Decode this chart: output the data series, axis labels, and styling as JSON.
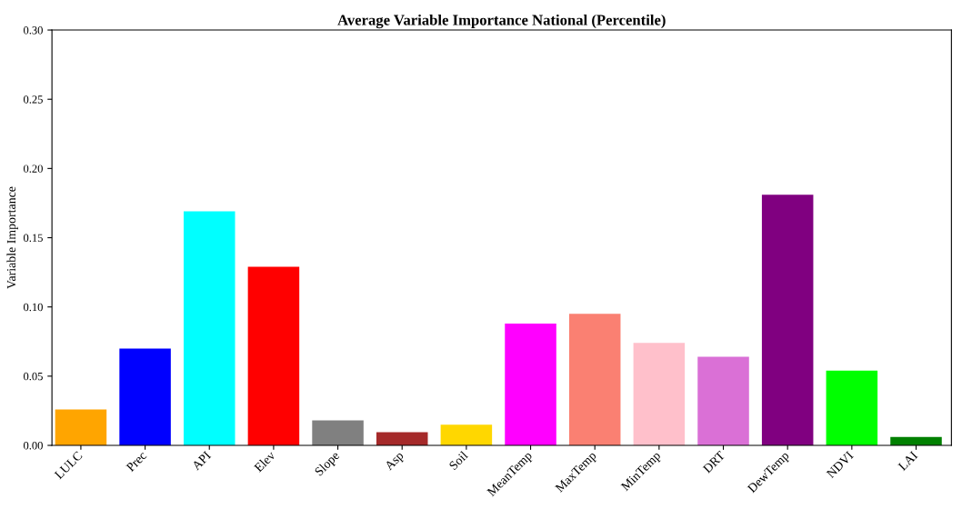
{
  "chart_data": {
    "type": "bar",
    "title": "Average Variable Importance National (Percentile)",
    "ylabel": "Variable Importance",
    "categories": [
      "LULC",
      "Prec",
      "API",
      "Elev",
      "Slope",
      "Asp",
      "Soil",
      "MeanTemp",
      "MaxTemp",
      "MinTemp",
      "DRT",
      "DewTemp",
      "NDVI",
      "LAI"
    ],
    "values": [
      0.026,
      0.07,
      0.169,
      0.129,
      0.018,
      0.0095,
      0.015,
      0.088,
      0.095,
      0.074,
      0.064,
      0.181,
      0.054,
      0.006
    ],
    "colors": [
      "#ffa500",
      "#0000ff",
      "#00ffff",
      "#ff0000",
      "#808080",
      "#a52a2a",
      "#ffd700",
      "#ff00ff",
      "#fa8072",
      "#ffc0cb",
      "#da70d6",
      "#800080",
      "#00ff00",
      "#008000"
    ],
    "ylim": [
      0,
      0.3
    ],
    "yticks": [
      {
        "value": 0,
        "label": "0.00"
      },
      {
        "value": 0.05,
        "label": "0.05"
      },
      {
        "value": 0.1,
        "label": "0.10"
      },
      {
        "value": 0.15,
        "label": "0.15"
      },
      {
        "value": 0.2,
        "label": "0.20"
      },
      {
        "value": 0.25,
        "label": "0.25"
      },
      {
        "value": 0.3,
        "label": "0.30"
      }
    ],
    "grid": false
  }
}
